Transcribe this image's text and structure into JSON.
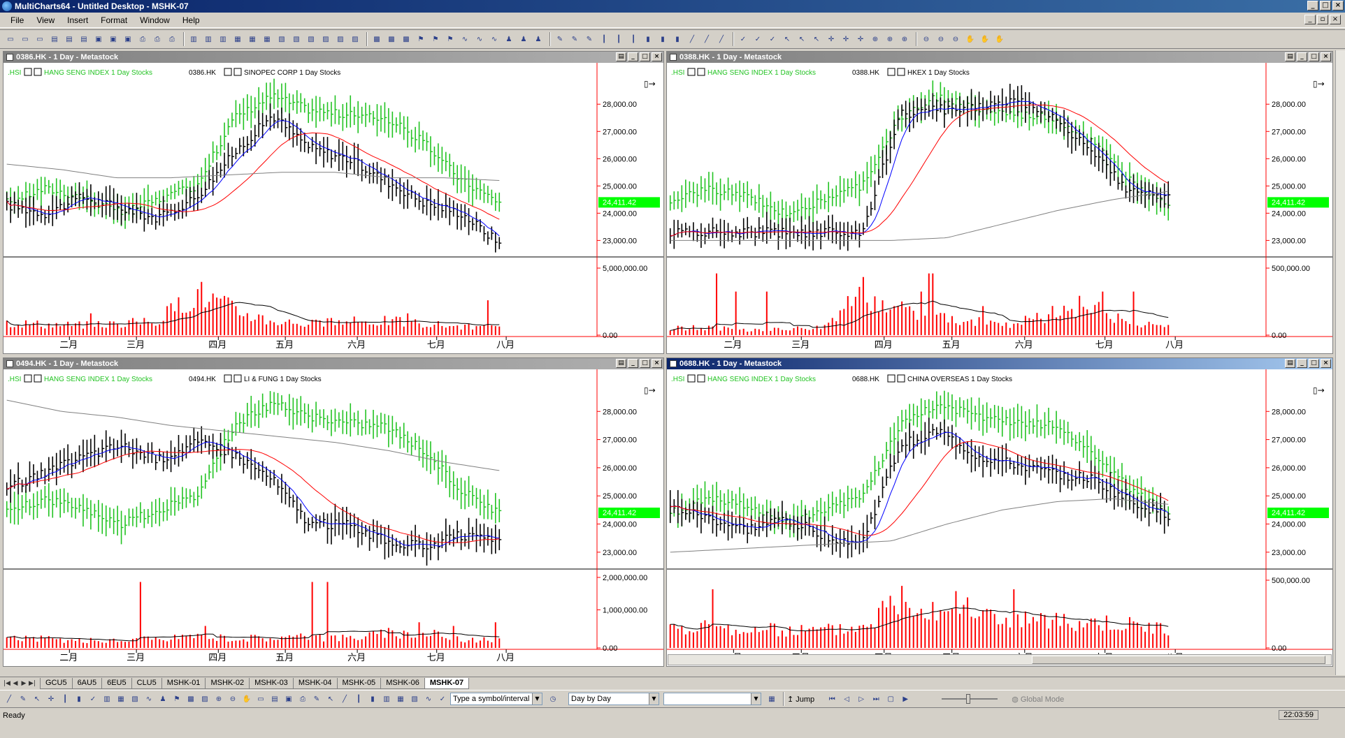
{
  "app": {
    "title": "MultiCharts64 - Untitled Desktop - MSHK-07"
  },
  "menu": [
    "File",
    "View",
    "Insert",
    "Format",
    "Window",
    "Help"
  ],
  "toolbar_icons": [
    "new-icon",
    "open-icon",
    "save-icon",
    "print-icon",
    "chart-icon",
    "quote-icon",
    "scanner-icon",
    "dom-icon",
    "portfolio-icon",
    "alerts-icon",
    "indicator-icon",
    "strategy-icon",
    "drawing-icon",
    "bar-icon",
    "candle-icon",
    "line-icon",
    "check-icon",
    "arrow-icon",
    "crosshair-icon",
    "zoom-in-icon",
    "zoom-out-icon",
    "hand-icon"
  ],
  "colors": {
    "hsi": "#22c322",
    "price": "#000000",
    "ma_fast": "#0000ff",
    "ma_mid": "#ff0000",
    "ma_slow": "#808080",
    "volume": "#ff0000",
    "label_bg": "#00ff00"
  },
  "windows": [
    {
      "title": "0386.HK - 1 Day - Metastock",
      "legend_hsi": "HANG SENG INDEX  1 Day  Stocks",
      "legend_hsi_sym": ".HSI",
      "legend_sym": "0386.HK",
      "legend_name": "SINOPEC CORP  1 Day  Stocks",
      "price_ticks": [
        "28,000.00",
        "27,000.00",
        "26,000.00",
        "25,000.00",
        "24,000.00",
        "23,000.00"
      ],
      "last_label": "24,411.42",
      "vol_ticks": [
        "5,000,000.00",
        "0.00"
      ],
      "months": [
        "二月",
        "三月",
        "四月",
        "五月",
        "六月",
        "七月",
        "八月"
      ]
    },
    {
      "title": "0388.HK - 1 Day - Metastock",
      "legend_hsi": "HANG SENG INDEX  1 Day  Stocks",
      "legend_hsi_sym": ".HSI",
      "legend_sym": "0388.HK",
      "legend_name": "HKEX  1 Day  Stocks",
      "price_ticks": [
        "28,000.00",
        "27,000.00",
        "26,000.00",
        "25,000.00",
        "24,000.00",
        "23,000.00"
      ],
      "last_label": "24,411.42",
      "vol_ticks": [
        "500,000.00",
        "0.00"
      ],
      "months": [
        "二月",
        "三月",
        "四月",
        "五月",
        "六月",
        "七月",
        "八月"
      ]
    },
    {
      "title": "0494.HK - 1 Day - Metastock",
      "legend_hsi": "HANG SENG INDEX  1 Day  Stocks",
      "legend_hsi_sym": ".HSI",
      "legend_sym": "0494.HK",
      "legend_name": "LI & FUNG  1 Day  Stocks",
      "price_ticks": [
        "28,000.00",
        "27,000.00",
        "26,000.00",
        "25,000.00",
        "24,000.00",
        "23,000.00"
      ],
      "last_label": "24,411.42",
      "vol_ticks": [
        "2,000,000.00",
        "1,000,000.00",
        "0.00"
      ],
      "months": [
        "二月",
        "三月",
        "四月",
        "五月",
        "六月",
        "七月",
        "八月"
      ]
    },
    {
      "title": "0688.HK - 1 Day - Metastock",
      "legend_hsi": "HANG SENG INDEX  1 Day  Stocks",
      "legend_hsi_sym": ".HSI",
      "legend_sym": "0688.HK",
      "legend_name": "CHINA OVERSEAS  1 Day  Stocks",
      "price_ticks": [
        "28,000.00",
        "27,000.00",
        "26,000.00",
        "25,000.00",
        "24,000.00",
        "23,000.00"
      ],
      "last_label": "24,411.42",
      "vol_ticks": [
        "500,000.00",
        "0.00"
      ],
      "months": [
        "二月",
        "三月",
        "四月",
        "五月",
        "六月",
        "七月",
        "八月"
      ]
    }
  ],
  "tabs": [
    "GCU5",
    "6AU5",
    "6EU5",
    "CLU5",
    "MSHK-01",
    "MSHK-02",
    "MSHK-03",
    "MSHK-04",
    "MSHK-05",
    "MSHK-06",
    "MSHK-07"
  ],
  "active_tab": "MSHK-07",
  "bottom": {
    "symbol_placeholder": "Type a symbol/interval",
    "replay_mode": "Day by Day",
    "jump_label": "Jump",
    "global_mode": "Global Mode"
  },
  "status": {
    "text": "Ready",
    "time": "22:03:59"
  }
}
